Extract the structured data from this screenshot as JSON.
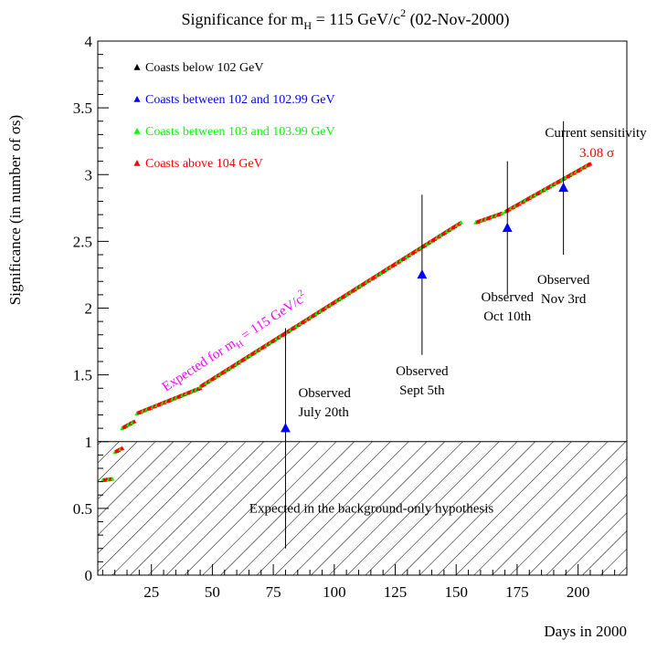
{
  "chart_data": {
    "type": "scatter",
    "title": {
      "prefix": "Significance for m",
      "sub": "H",
      "mid": " = 115 GeV/c",
      "sup": "2",
      "suffix": " (02-Nov-2000)"
    },
    "xlabel": "Days in 2000",
    "ylabel": "Significance (in number of σs)",
    "xlim": [
      3,
      220
    ],
    "ylim": [
      0,
      4
    ],
    "xticks": [
      25,
      50,
      75,
      100,
      125,
      150,
      175,
      200
    ],
    "xtick_labels": [
      "25",
      "50",
      "75",
      "100",
      "125",
      "150",
      "175",
      "200"
    ],
    "yticks": [
      0,
      0.5,
      1,
      1.5,
      2,
      2.5,
      3,
      3.5,
      4
    ],
    "ytick_labels": [
      "0",
      "0.5",
      "1",
      "1.5",
      "2",
      "2.5",
      "3",
      "3.5",
      "4"
    ],
    "legend_position": "top-left",
    "legend": [
      {
        "label": "Coasts below 102 GeV",
        "color": "#000000"
      },
      {
        "label": "Coasts between 102 and 102.99 GeV",
        "color": "#0000ff"
      },
      {
        "label": "Coasts between 103 and 103.99 GeV",
        "color": "#00ff00"
      },
      {
        "label": "Coasts above 104 GeV",
        "color": "#ff0000"
      }
    ],
    "expected_segments": [
      {
        "x": [
          5,
          9
        ],
        "y": [
          0.71,
          0.72
        ]
      },
      {
        "x": [
          10,
          13
        ],
        "y": [
          0.92,
          0.95
        ]
      },
      {
        "x": [
          13,
          18
        ],
        "y": [
          1.1,
          1.15
        ]
      },
      {
        "x": [
          19,
          45
        ],
        "y": [
          1.21,
          1.4
        ]
      },
      {
        "x": [
          45,
          152
        ],
        "y": [
          1.41,
          2.64
        ]
      },
      {
        "x": [
          158,
          169
        ],
        "y": [
          2.64,
          2.71
        ]
      },
      {
        "x": [
          170,
          205
        ],
        "y": [
          2.72,
          3.08
        ]
      }
    ],
    "observed_points": [
      {
        "x": 80,
        "y": 1.1,
        "err_low": 0.2,
        "err_high": 1.85,
        "label": [
          "Observed",
          "July 20th"
        ]
      },
      {
        "x": 136,
        "y": 2.25,
        "err_low": 1.65,
        "err_high": 2.85,
        "label": [
          "Observed",
          "Sept 5th"
        ]
      },
      {
        "x": 171,
        "y": 2.6,
        "err_low": 2.1,
        "err_high": 3.1,
        "label": [
          "Observed",
          "Oct 10th"
        ]
      },
      {
        "x": 194,
        "y": 2.9,
        "err_low": 2.4,
        "err_high": 3.4,
        "label": [
          "Observed",
          "Nov 3rd"
        ]
      }
    ],
    "expected_label": {
      "prefix": "Expected for m",
      "sub": "H",
      "mid": " = 115 GeV/c",
      "sup": "2"
    },
    "current_sensitivity": {
      "label": "Current sensitivity",
      "value": "3.08 σ"
    },
    "background_region": {
      "y_max": 1,
      "label": "Expected in the background-only hypothesis"
    },
    "colors": {
      "observed": "#0000ff",
      "expected_label": "#ff00ff",
      "current_value": "#ff0000",
      "expected_red": "#ff0000",
      "expected_green": "#00ff00"
    }
  }
}
